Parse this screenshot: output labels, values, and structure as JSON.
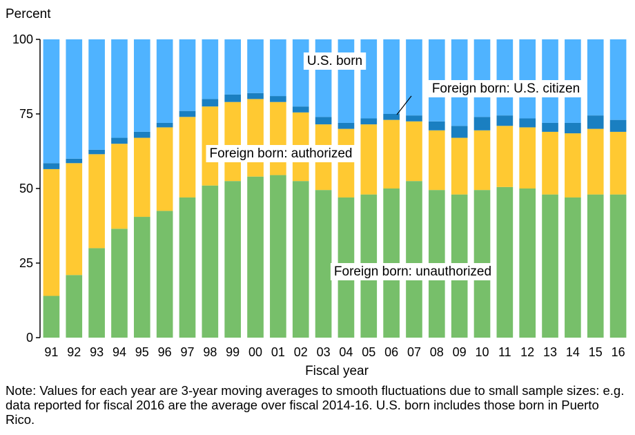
{
  "chart_data": {
    "type": "bar",
    "stacked": true,
    "ylabel": "Percent",
    "xlabel": "Fiscal year",
    "ylim": [
      0,
      100
    ],
    "yticks": [
      0,
      25,
      50,
      75,
      100
    ],
    "grid": false,
    "categories": [
      "91",
      "92",
      "93",
      "94",
      "95",
      "96",
      "97",
      "98",
      "99",
      "00",
      "01",
      "02",
      "03",
      "04",
      "05",
      "06",
      "07",
      "08",
      "09",
      "10",
      "11",
      "12",
      "13",
      "14",
      "15",
      "16"
    ],
    "series": [
      {
        "name": "Foreign born: unauthorized",
        "color": "#77bf6a",
        "values": [
          14,
          21,
          30,
          36.5,
          40.5,
          42.5,
          47,
          51,
          52.5,
          54,
          54.5,
          52.5,
          49.5,
          47,
          48,
          50,
          52.5,
          49.5,
          48,
          49.5,
          50.5,
          50,
          48,
          47,
          48,
          48
        ]
      },
      {
        "name": "Foreign born: authorized",
        "color": "#ffc932",
        "values": [
          42.5,
          37.5,
          31.5,
          28.5,
          26.5,
          28,
          27,
          26.5,
          26.5,
          26,
          24.5,
          23,
          22,
          23,
          23.5,
          23,
          20,
          20,
          19,
          20,
          20.5,
          20.5,
          21,
          21.5,
          22,
          21
        ]
      },
      {
        "name": "Foreign born: U.S. citizen",
        "color": "#1a7fc1",
        "values": [
          2,
          1.5,
          1.5,
          2,
          2,
          1.5,
          2,
          2.5,
          2.5,
          2,
          2,
          2,
          2.5,
          2,
          2,
          2,
          2,
          3,
          4,
          4.5,
          3.5,
          3,
          3,
          3.5,
          4.5,
          4
        ]
      },
      {
        "name": "U.S. born",
        "color": "#4fb3ff",
        "values": [
          41.5,
          40,
          37,
          33,
          31,
          28,
          24,
          20,
          18.5,
          18,
          19,
          22.5,
          26,
          28,
          26.5,
          25,
          25.5,
          27.5,
          29,
          26,
          25.5,
          26.5,
          28,
          28,
          25.5,
          27
        ]
      }
    ],
    "annotations": [
      {
        "text": "U.S. born",
        "series": 3
      },
      {
        "text": "Foreign born: U.S. citizen",
        "series": 2
      },
      {
        "text": "Foreign born: authorized",
        "series": 1
      },
      {
        "text": "Foreign born: unauthorized",
        "series": 0
      }
    ]
  },
  "note": "Note: Values for each year are 3-year moving averages to smooth fluctuations due to small sample sizes: e.g. data reported for fiscal 2016 are the average over fiscal 2014-16. U.S. born includes those born in Puerto Rico."
}
